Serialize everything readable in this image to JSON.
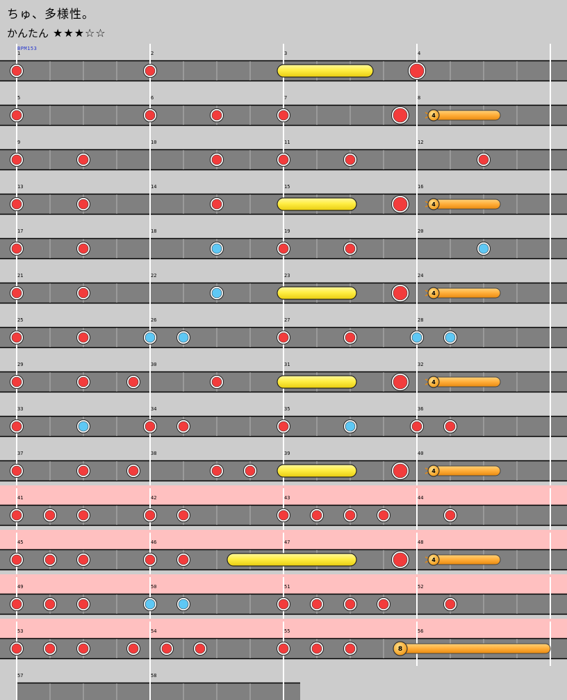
{
  "song": {
    "title": "ちゅ、多様性。",
    "difficulty_label": "かんたん",
    "stars": "★★★☆☆",
    "star_rating": 3,
    "star_max": 5,
    "bpm_label": "BPM153"
  },
  "colors": {
    "background": "#cccccc",
    "lane": "#808080",
    "gogo_band": "#ffc0c0",
    "don": "#f33c3c",
    "ka": "#5ec8f5",
    "drumroll": "#ffee44",
    "balloon": "#ffad38"
  },
  "chart_data": {
    "type": "taiko-score",
    "measures_per_row": 4,
    "beats_per_measure": 4,
    "total_measures": 58,
    "gogo_measures": [
      41,
      42,
      43,
      44,
      45,
      46,
      47,
      48,
      49,
      50,
      51,
      52,
      53,
      54,
      55,
      56
    ],
    "rows": [
      {
        "measures": [
          1,
          2,
          3,
          4
        ],
        "notes": [
          {
            "t": 0,
            "type": "don"
          },
          {
            "t": 4,
            "type": "don"
          },
          {
            "t": 12,
            "type": "DON"
          }
        ],
        "rolls": [
          {
            "start": 8,
            "end": 10.5,
            "type": "drumroll"
          }
        ]
      },
      {
        "measures": [
          5,
          6,
          7,
          8
        ],
        "notes": [
          {
            "t": 0,
            "type": "don"
          },
          {
            "t": 4,
            "type": "don"
          },
          {
            "t": 6,
            "type": "don"
          },
          {
            "t": 8,
            "type": "don"
          },
          {
            "t": 11.5,
            "type": "DON"
          }
        ],
        "rolls": [
          {
            "start": 12.5,
            "end": 14.5,
            "type": "balloon",
            "count": "4"
          }
        ]
      },
      {
        "measures": [
          9,
          10,
          11,
          12
        ],
        "notes": [
          {
            "t": 0,
            "type": "don"
          },
          {
            "t": 2,
            "type": "don"
          },
          {
            "t": 6,
            "type": "don"
          },
          {
            "t": 8,
            "type": "don"
          },
          {
            "t": 10,
            "type": "don"
          },
          {
            "t": 14,
            "type": "don"
          }
        ],
        "rolls": []
      },
      {
        "measures": [
          13,
          14,
          15,
          16
        ],
        "notes": [
          {
            "t": 0,
            "type": "don"
          },
          {
            "t": 2,
            "type": "don"
          },
          {
            "t": 6,
            "type": "don"
          },
          {
            "t": 11.5,
            "type": "DON"
          }
        ],
        "rolls": [
          {
            "start": 8,
            "end": 10,
            "type": "drumroll"
          },
          {
            "start": 12.5,
            "end": 14.5,
            "type": "balloon",
            "count": "4"
          }
        ]
      },
      {
        "measures": [
          17,
          18,
          19,
          20
        ],
        "notes": [
          {
            "t": 0,
            "type": "don"
          },
          {
            "t": 2,
            "type": "don"
          },
          {
            "t": 6,
            "type": "ka"
          },
          {
            "t": 8,
            "type": "don"
          },
          {
            "t": 10,
            "type": "don"
          },
          {
            "t": 14,
            "type": "ka"
          }
        ],
        "rolls": []
      },
      {
        "measures": [
          21,
          22,
          23,
          24
        ],
        "notes": [
          {
            "t": 0,
            "type": "don"
          },
          {
            "t": 2,
            "type": "don"
          },
          {
            "t": 6,
            "type": "ka"
          },
          {
            "t": 11.5,
            "type": "DON"
          }
        ],
        "rolls": [
          {
            "start": 8,
            "end": 10,
            "type": "drumroll"
          },
          {
            "start": 12.5,
            "end": 14.5,
            "type": "balloon",
            "count": "4"
          }
        ]
      },
      {
        "measures": [
          25,
          26,
          27,
          28
        ],
        "notes": [
          {
            "t": 0,
            "type": "don"
          },
          {
            "t": 2,
            "type": "don"
          },
          {
            "t": 4,
            "type": "ka"
          },
          {
            "t": 5,
            "type": "ka"
          },
          {
            "t": 8,
            "type": "don"
          },
          {
            "t": 10,
            "type": "don"
          },
          {
            "t": 12,
            "type": "ka"
          },
          {
            "t": 13,
            "type": "ka"
          }
        ],
        "rolls": []
      },
      {
        "measures": [
          29,
          30,
          31,
          32
        ],
        "notes": [
          {
            "t": 0,
            "type": "don"
          },
          {
            "t": 2,
            "type": "don"
          },
          {
            "t": 3.5,
            "type": "don"
          },
          {
            "t": 6,
            "type": "don"
          },
          {
            "t": 11.5,
            "type": "DON"
          }
        ],
        "rolls": [
          {
            "start": 8,
            "end": 10,
            "type": "drumroll"
          },
          {
            "start": 12.5,
            "end": 14.5,
            "type": "balloon",
            "count": "4"
          }
        ]
      },
      {
        "measures": [
          33,
          34,
          35,
          36
        ],
        "notes": [
          {
            "t": 0,
            "type": "don"
          },
          {
            "t": 2,
            "type": "ka"
          },
          {
            "t": 4,
            "type": "don"
          },
          {
            "t": 5,
            "type": "don"
          },
          {
            "t": 8,
            "type": "don"
          },
          {
            "t": 10,
            "type": "ka"
          },
          {
            "t": 12,
            "type": "don"
          },
          {
            "t": 13,
            "type": "don"
          }
        ],
        "rolls": []
      },
      {
        "measures": [
          37,
          38,
          39,
          40
        ],
        "notes": [
          {
            "t": 0,
            "type": "don"
          },
          {
            "t": 2,
            "type": "don"
          },
          {
            "t": 3.5,
            "type": "don"
          },
          {
            "t": 6,
            "type": "don"
          },
          {
            "t": 7,
            "type": "don"
          },
          {
            "t": 11.5,
            "type": "DON"
          }
        ],
        "rolls": [
          {
            "start": 8,
            "end": 10,
            "type": "drumroll"
          },
          {
            "start": 12.5,
            "end": 14.5,
            "type": "balloon",
            "count": "4"
          }
        ]
      },
      {
        "measures": [
          41,
          42,
          43,
          44
        ],
        "notes": [
          {
            "t": 0,
            "type": "don"
          },
          {
            "t": 1,
            "type": "don"
          },
          {
            "t": 2,
            "type": "don"
          },
          {
            "t": 4,
            "type": "don"
          },
          {
            "t": 5,
            "type": "don"
          },
          {
            "t": 8,
            "type": "don"
          },
          {
            "t": 9,
            "type": "don"
          },
          {
            "t": 10,
            "type": "don"
          },
          {
            "t": 11,
            "type": "don"
          },
          {
            "t": 13,
            "type": "don"
          }
        ],
        "rolls": []
      },
      {
        "measures": [
          45,
          46,
          47,
          48
        ],
        "notes": [
          {
            "t": 0,
            "type": "don"
          },
          {
            "t": 1,
            "type": "don"
          },
          {
            "t": 2,
            "type": "don"
          },
          {
            "t": 4,
            "type": "don"
          },
          {
            "t": 5,
            "type": "don"
          },
          {
            "t": 11.5,
            "type": "DON"
          }
        ],
        "rolls": [
          {
            "start": 6.5,
            "end": 10,
            "type": "drumroll"
          },
          {
            "start": 12.5,
            "end": 14.5,
            "type": "balloon",
            "count": "4"
          }
        ]
      },
      {
        "measures": [
          49,
          50,
          51,
          52
        ],
        "notes": [
          {
            "t": 0,
            "type": "don"
          },
          {
            "t": 1,
            "type": "don"
          },
          {
            "t": 2,
            "type": "don"
          },
          {
            "t": 4,
            "type": "ka"
          },
          {
            "t": 5,
            "type": "ka"
          },
          {
            "t": 8,
            "type": "don"
          },
          {
            "t": 9,
            "type": "don"
          },
          {
            "t": 10,
            "type": "don"
          },
          {
            "t": 11,
            "type": "don"
          },
          {
            "t": 13,
            "type": "don"
          }
        ],
        "rolls": []
      },
      {
        "measures": [
          53,
          54,
          55,
          56
        ],
        "notes": [
          {
            "t": 0,
            "type": "don"
          },
          {
            "t": 1,
            "type": "don"
          },
          {
            "t": 2,
            "type": "don"
          },
          {
            "t": 3.5,
            "type": "don"
          },
          {
            "t": 4.5,
            "type": "don"
          },
          {
            "t": 5.5,
            "type": "don"
          },
          {
            "t": 8,
            "type": "don"
          },
          {
            "t": 9,
            "type": "don"
          },
          {
            "t": 10,
            "type": "don"
          }
        ],
        "rolls": [
          {
            "start": 11.5,
            "end": 16,
            "type": "balloon",
            "count": "8"
          }
        ]
      },
      {
        "measures": [
          57,
          58
        ],
        "notes": [],
        "rolls": []
      }
    ]
  }
}
